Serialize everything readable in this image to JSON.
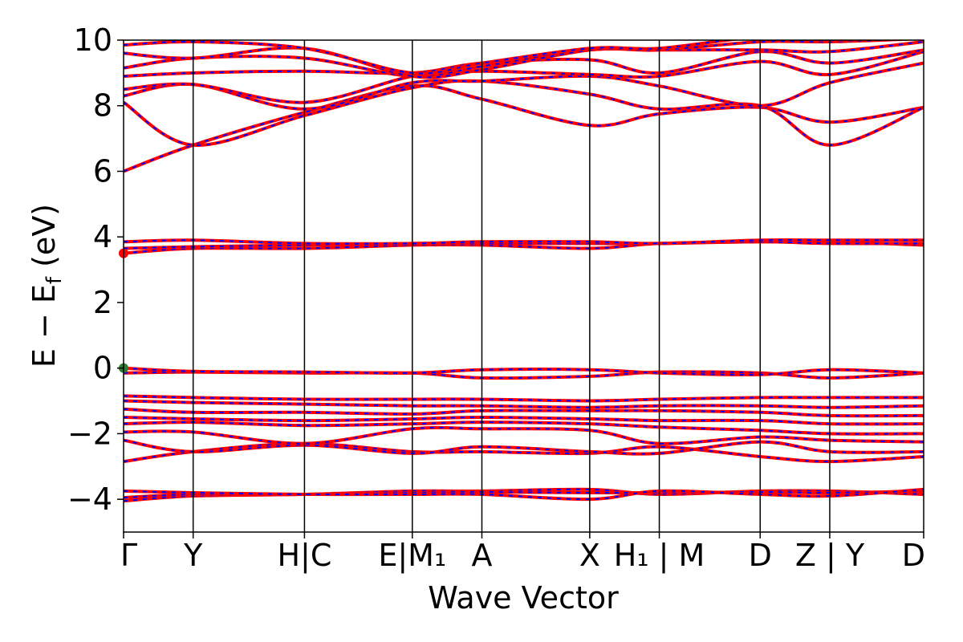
{
  "chart_data": {
    "type": "line",
    "title": "",
    "xlabel": "Wave Vector",
    "ylabel": "E − E_f (eV)",
    "ylim": [
      -5,
      10
    ],
    "yticks": [
      -4,
      -2,
      0,
      2,
      4,
      6,
      8,
      10
    ],
    "ytick_labels": [
      "−4",
      "−2",
      "0",
      "2",
      "4",
      "6",
      "8",
      "10"
    ],
    "xlim": [
      0,
      11.5
    ],
    "kpoints": [
      {
        "label": "Γ",
        "pos": 0.0
      },
      {
        "label": "Y",
        "pos": 1.0
      },
      {
        "label": "H|C",
        "pos": 2.6
      },
      {
        "label": "E|M₁",
        "pos": 4.15
      },
      {
        "label": "A",
        "pos": 5.15
      },
      {
        "label": "X",
        "pos": 6.7
      },
      {
        "label": "H₁ | M",
        "pos": 7.7
      },
      {
        "label": "D",
        "pos": 9.15
      },
      {
        "label": "Z | Y",
        "pos": 10.15
      },
      {
        "label": "D",
        "pos": 11.5
      }
    ],
    "band_colors": {
      "spin_up": "#ff0000",
      "spin_down": "#0000ff"
    },
    "markers": [
      {
        "x": 0.0,
        "y": 3.5,
        "color": "#ff0000"
      },
      {
        "x": 0.0,
        "y": 0.0,
        "color": "#2e7d32"
      }
    ],
    "bands": [
      {
        "name": "b1",
        "x": [
          0,
          1,
          2.6,
          4.15,
          5.15,
          6.7,
          7.7,
          9.15,
          10.15,
          11.5
        ],
        "y": [
          -4.05,
          -3.9,
          -3.85,
          -3.75,
          -3.75,
          -3.7,
          -3.85,
          -3.75,
          -3.75,
          -3.85
        ]
      },
      {
        "name": "b2",
        "x": [
          0,
          1,
          2.6,
          4.15,
          5.15,
          6.7,
          7.7,
          9.15,
          10.15,
          11.5
        ],
        "y": [
          -3.95,
          -3.85,
          -3.85,
          -3.8,
          -3.78,
          -3.8,
          -3.8,
          -3.78,
          -3.8,
          -3.75
        ]
      },
      {
        "name": "b3",
        "x": [
          0,
          1,
          2.6,
          4.15,
          5.15,
          6.7,
          7.7,
          9.15,
          10.15,
          11.5
        ],
        "y": [
          -3.75,
          -3.8,
          -3.85,
          -3.85,
          -3.85,
          -4.0,
          -3.75,
          -3.85,
          -3.9,
          -3.7
        ]
      },
      {
        "name": "b4",
        "x": [
          0,
          1,
          2.6,
          4.15,
          5.15,
          6.7,
          7.7,
          9.15,
          10.15,
          11.5
        ],
        "y": [
          -2.85,
          -2.55,
          -2.3,
          -2.55,
          -2.55,
          -2.6,
          -2.4,
          -2.7,
          -2.85,
          -2.7
        ]
      },
      {
        "name": "b5",
        "x": [
          0,
          1,
          2.6,
          4.15,
          5.15,
          6.7,
          7.7,
          9.15,
          10.15,
          11.5
        ],
        "y": [
          -2.2,
          -2.55,
          -2.35,
          -2.6,
          -2.4,
          -2.55,
          -2.6,
          -2.25,
          -2.55,
          -2.55
        ]
      },
      {
        "name": "b6",
        "x": [
          0,
          1,
          2.6,
          4.15,
          5.15,
          6.7,
          7.7,
          9.15,
          10.15,
          11.5
        ],
        "y": [
          -1.95,
          -1.95,
          -2.3,
          -1.85,
          -1.85,
          -1.9,
          -2.3,
          -2.1,
          -2.2,
          -2.25
        ]
      },
      {
        "name": "b7",
        "x": [
          0,
          1,
          2.6,
          4.15,
          5.15,
          6.7,
          7.7,
          9.15,
          10.15,
          11.5
        ],
        "y": [
          -1.7,
          -1.65,
          -1.75,
          -1.7,
          -1.65,
          -1.7,
          -1.8,
          -1.9,
          -2.0,
          -2.0
        ]
      },
      {
        "name": "b8",
        "x": [
          0,
          1,
          2.6,
          4.15,
          5.15,
          6.7,
          7.7,
          9.15,
          10.15,
          11.5
        ],
        "y": [
          -1.5,
          -1.55,
          -1.6,
          -1.55,
          -1.5,
          -1.55,
          -1.6,
          -1.6,
          -1.7,
          -1.7
        ]
      },
      {
        "name": "b9",
        "x": [
          0,
          1,
          2.6,
          4.15,
          5.15,
          6.7,
          7.7,
          9.15,
          10.15,
          11.5
        ],
        "y": [
          -1.25,
          -1.35,
          -1.35,
          -1.4,
          -1.3,
          -1.3,
          -1.3,
          -1.35,
          -1.45,
          -1.45
        ]
      },
      {
        "name": "b10",
        "x": [
          0,
          1,
          2.6,
          4.15,
          5.15,
          6.7,
          7.7,
          9.15,
          10.15,
          11.5
        ],
        "y": [
          -1.0,
          -1.05,
          -1.1,
          -1.15,
          -1.15,
          -1.2,
          -1.15,
          -1.15,
          -1.2,
          -1.15
        ]
      },
      {
        "name": "b11",
        "x": [
          0,
          1,
          2.6,
          4.15,
          5.15,
          6.7,
          7.7,
          9.15,
          10.15,
          11.5
        ],
        "y": [
          -0.85,
          -0.9,
          -0.95,
          -0.95,
          -0.95,
          -1.0,
          -0.95,
          -0.9,
          -0.9,
          -0.9
        ]
      },
      {
        "name": "b12",
        "x": [
          0,
          1,
          2.6,
          4.15,
          5.15,
          6.7,
          7.7,
          9.15,
          10.15,
          11.5
        ],
        "y": [
          -0.15,
          -0.12,
          -0.15,
          -0.15,
          -0.3,
          -0.25,
          -0.12,
          -0.15,
          -0.3,
          -0.15
        ]
      },
      {
        "name": "b13",
        "x": [
          0,
          1,
          2.6,
          4.15,
          5.15,
          6.7,
          7.7,
          9.15,
          10.15,
          11.5
        ],
        "y": [
          0.0,
          -0.1,
          -0.12,
          -0.15,
          -0.05,
          -0.05,
          -0.15,
          -0.2,
          -0.05,
          -0.15
        ]
      },
      {
        "name": "b14",
        "x": [
          0,
          1,
          2.6,
          4.15,
          5.15,
          6.7,
          7.7,
          9.15,
          10.15,
          11.5
        ],
        "y": [
          3.5,
          3.65,
          3.65,
          3.75,
          3.75,
          3.65,
          3.8,
          3.85,
          3.85,
          3.75
        ]
      },
      {
        "name": "b15",
        "x": [
          0,
          1,
          2.6,
          4.15,
          5.15,
          6.7,
          7.7,
          9.15,
          10.15,
          11.5
        ],
        "y": [
          3.65,
          3.7,
          3.75,
          3.8,
          3.8,
          3.8,
          3.8,
          3.85,
          3.8,
          3.8
        ]
      },
      {
        "name": "b16",
        "x": [
          0,
          1,
          2.6,
          4.15,
          5.15,
          6.7,
          7.7,
          9.15,
          10.15,
          11.5
        ],
        "y": [
          3.85,
          3.9,
          3.8,
          3.8,
          3.85,
          3.85,
          3.8,
          3.9,
          3.9,
          3.9
        ]
      },
      {
        "name": "b17",
        "x": [
          0,
          1,
          2.6,
          4.15,
          5.15,
          6.7,
          7.7,
          9.15,
          10.15,
          11.5
        ],
        "y": [
          6.0,
          6.8,
          7.8,
          8.6,
          8.2,
          7.4,
          7.75,
          7.95,
          7.5,
          7.95
        ]
      },
      {
        "name": "b18",
        "x": [
          0,
          1,
          2.6,
          4.15,
          5.15,
          6.7,
          7.7,
          9.15,
          10.15,
          11.5
        ],
        "y": [
          8.1,
          6.8,
          7.7,
          8.55,
          8.75,
          8.35,
          7.9,
          8.0,
          6.8,
          7.95
        ]
      },
      {
        "name": "b19",
        "x": [
          0,
          1,
          2.6,
          4.15,
          5.15,
          6.7,
          7.7,
          9.15,
          10.15,
          11.5
        ],
        "y": [
          8.3,
          8.65,
          7.9,
          8.7,
          8.75,
          8.9,
          8.6,
          8.0,
          8.7,
          9.3
        ]
      },
      {
        "name": "b20",
        "x": [
          0,
          1,
          2.6,
          4.15,
          5.15,
          6.7,
          7.7,
          9.15,
          10.15,
          11.5
        ],
        "y": [
          8.5,
          8.65,
          8.1,
          8.9,
          9.05,
          8.95,
          8.9,
          9.35,
          8.95,
          9.65
        ]
      },
      {
        "name": "b21",
        "x": [
          0,
          1,
          2.6,
          4.15,
          5.15,
          6.7,
          7.7,
          9.15,
          10.15,
          11.5
        ],
        "y": [
          8.9,
          9.0,
          9.05,
          9.0,
          9.3,
          9.4,
          9.0,
          9.65,
          9.3,
          9.7
        ]
      },
      {
        "name": "b22",
        "x": [
          0,
          1,
          2.6,
          4.15,
          5.15,
          6.7,
          7.7,
          9.15,
          10.15,
          11.5
        ],
        "y": [
          9.15,
          9.45,
          9.45,
          8.9,
          9.2,
          9.7,
          9.7,
          9.7,
          9.65,
          9.95
        ]
      },
      {
        "name": "b23",
        "x": [
          0,
          1,
          2.6,
          4.15,
          5.15,
          6.7,
          7.7,
          9.15,
          10.15,
          11.5
        ],
        "y": [
          9.6,
          9.45,
          9.75,
          8.9,
          9.1,
          9.7,
          9.7,
          9.95,
          9.95,
          10.05
        ]
      },
      {
        "name": "b24",
        "x": [
          0,
          1,
          2.6,
          4.15,
          5.15,
          6.7,
          7.7,
          9.15,
          10.15,
          11.5
        ],
        "y": [
          9.85,
          9.95,
          9.75,
          9.0,
          9.3,
          9.75,
          9.75,
          10.1,
          10.0,
          10.1
        ]
      }
    ]
  }
}
